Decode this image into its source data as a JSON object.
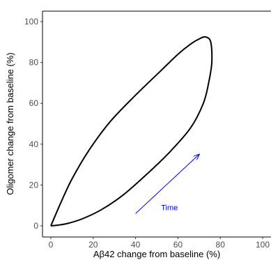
{
  "chart_data": {
    "type": "line",
    "title": "",
    "xlabel": "Aβ42 change from baseline (%)",
    "ylabel": "Oligomer change from baseline (%)",
    "xlim": [
      0,
      100
    ],
    "ylim": [
      0,
      100
    ],
    "x_ticks": [
      0,
      20,
      40,
      60,
      80,
      100
    ],
    "y_ticks": [
      0,
      20,
      40,
      60,
      80,
      100
    ],
    "grid": false,
    "line_color": "#000000",
    "series": [
      {
        "x": [
          0,
          5,
          10,
          18,
          28,
          40,
          52,
          60,
          66,
          70,
          73,
          75.5,
          76,
          74.5,
          72,
          66,
          56,
          45,
          34,
          24,
          15,
          8,
          3,
          0
        ],
        "y": [
          0,
          12,
          23,
          37,
          51,
          64,
          76,
          84,
          89,
          91.5,
          92.5,
          90,
          80,
          70,
          60,
          48,
          36,
          25,
          15,
          8,
          3.5,
          1.2,
          0.3,
          0
        ]
      }
    ],
    "annotations": [
      {
        "text": "Time",
        "x": 56,
        "y": 9,
        "color": "#0000ff",
        "arrow": {
          "from": [
            40,
            6
          ],
          "to": [
            70,
            35
          ]
        }
      }
    ]
  }
}
